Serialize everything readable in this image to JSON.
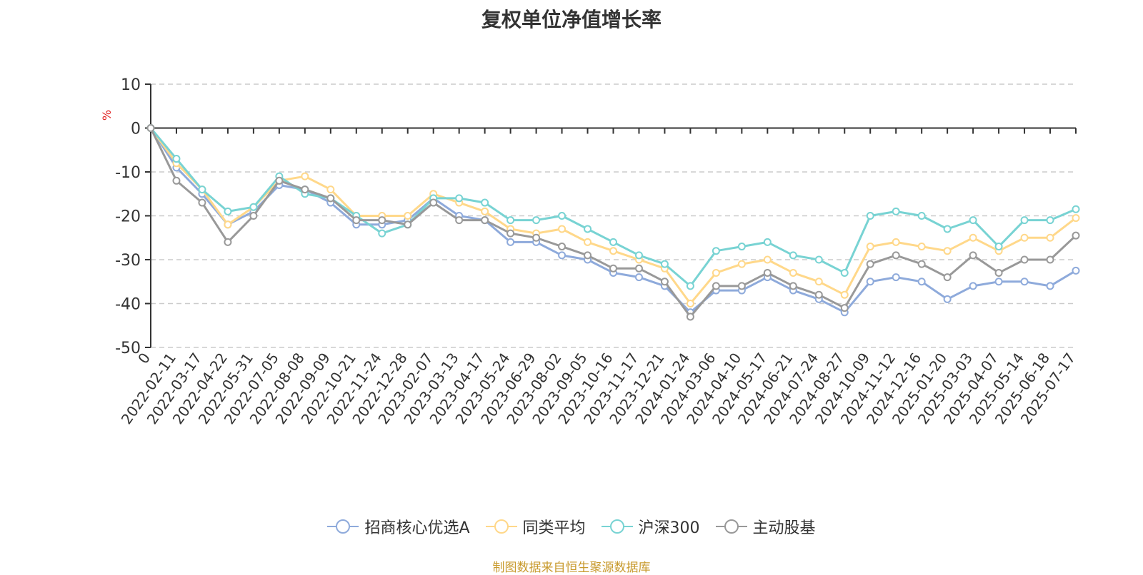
{
  "chart_data": {
    "type": "line",
    "title": "复权单位净值增长率",
    "ylabel": "%",
    "ylim": [
      -50,
      10
    ],
    "yticks": [
      10,
      0,
      -10,
      -20,
      -30,
      -40,
      -50
    ],
    "grid": true,
    "legend_position": "bottom-center",
    "source": "制图数据来自恒生聚源数据库",
    "x": [
      "0",
      "2022-02-11",
      "2022-03-17",
      "2022-04-22",
      "2022-05-31",
      "2022-07-05",
      "2022-08-08",
      "2022-09-09",
      "2022-10-21",
      "2022-11-24",
      "2022-12-28",
      "2023-02-07",
      "2023-03-13",
      "2023-04-17",
      "2023-05-24",
      "2023-06-29",
      "2023-08-02",
      "2023-09-05",
      "2023-10-16",
      "2023-11-17",
      "2023-12-21",
      "2024-01-24",
      "2024-03-06",
      "2024-04-10",
      "2024-05-17",
      "2024-06-21",
      "2024-07-24",
      "2024-08-27",
      "2024-10-09",
      "2024-11-12",
      "2024-12-16",
      "2025-01-20",
      "2025-03-03",
      "2025-04-07",
      "2025-05-14",
      "2025-06-18",
      "2025-07-17"
    ],
    "series": [
      {
        "name": "招商核心优选A",
        "color": "#8eaadb",
        "values": [
          0,
          -9,
          -15,
          -22,
          -19,
          -13,
          -14,
          -17,
          -22,
          -22,
          -21,
          -16,
          -20,
          -21,
          -26,
          -26,
          -29,
          -30,
          -33,
          -34,
          -36,
          -42,
          -37,
          -37,
          -34,
          -37,
          -39,
          -42,
          -35,
          -34,
          -35,
          -39,
          -36,
          -35,
          -35,
          -36,
          -32.5
        ]
      },
      {
        "name": "同类平均",
        "color": "#ffd88a",
        "values": [
          0,
          -8,
          -14,
          -22,
          -18,
          -12,
          -11,
          -14,
          -20,
          -20,
          -20,
          -15,
          -17,
          -19,
          -23,
          -24,
          -23,
          -26,
          -28,
          -30,
          -32,
          -40,
          -33,
          -31,
          -30,
          -33,
          -35,
          -38,
          -27,
          -26,
          -27,
          -28,
          -25,
          -28,
          -25,
          -25,
          -20.5
        ]
      },
      {
        "name": "沪深300",
        "color": "#78d3d3",
        "values": [
          0,
          -7,
          -14,
          -19,
          -18,
          -11,
          -15,
          -16,
          -20,
          -24,
          -22,
          -16,
          -16,
          -17,
          -21,
          -21,
          -20,
          -23,
          -26,
          -29,
          -31,
          -36,
          -28,
          -27,
          -26,
          -29,
          -30,
          -33,
          -20,
          -19,
          -20,
          -23,
          -21,
          -27,
          -21,
          -21,
          -18.5
        ]
      },
      {
        "name": "主动股基",
        "color": "#999999",
        "values": [
          0,
          -12,
          -17,
          -26,
          -20,
          -12,
          -14,
          -16,
          -21,
          -21,
          -22,
          -17,
          -21,
          -21,
          -24,
          -25,
          -27,
          -29,
          -32,
          -32,
          -35,
          -43,
          -36,
          -36,
          -33,
          -36,
          -38,
          -41,
          -31,
          -29,
          -31,
          -34,
          -29,
          -33,
          -30,
          -30,
          -24.5
        ]
      }
    ]
  }
}
